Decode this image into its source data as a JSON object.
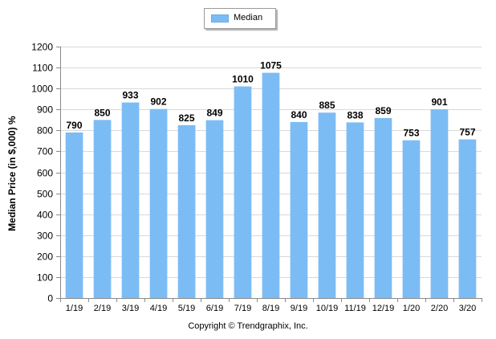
{
  "legend": {
    "label": "Median",
    "color": "#7cbcf5"
  },
  "footer": {
    "copyright": "Copyright © Trendgraphix, Inc."
  },
  "chart_data": {
    "type": "bar",
    "title": "",
    "xlabel": "",
    "ylabel": "Median Price (in $,000) %",
    "ylim": [
      0,
      1200
    ],
    "yticks": [
      0,
      100,
      200,
      300,
      400,
      500,
      600,
      700,
      800,
      900,
      1000,
      1100,
      1200
    ],
    "grid": true,
    "legend_position": "top-center",
    "categories": [
      "1/19",
      "2/19",
      "3/19",
      "4/19",
      "5/19",
      "6/19",
      "7/19",
      "8/19",
      "9/19",
      "10/19",
      "11/19",
      "12/19",
      "1/20",
      "2/20",
      "3/20"
    ],
    "series": [
      {
        "name": "Median",
        "values": [
          790,
          850,
          933,
          902,
          825,
          849,
          1010,
          1075,
          840,
          885,
          838,
          859,
          753,
          901,
          757
        ],
        "color": "#7cbcf5"
      }
    ],
    "data_labels": true
  }
}
